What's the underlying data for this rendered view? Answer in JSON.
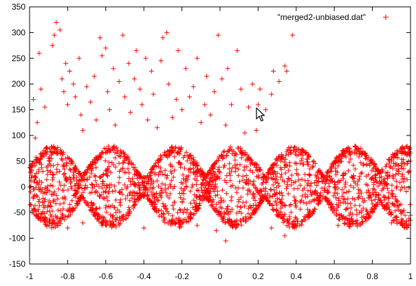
{
  "chart_data": {
    "type": "scatter",
    "title": "",
    "xlabel": "",
    "ylabel": "",
    "xlim": [
      -1,
      1
    ],
    "ylim": [
      -150,
      350
    ],
    "grid": false,
    "legend_position": "top-right",
    "marker": "plus",
    "colors": {
      "series": "#ff0000",
      "axes": "#000000",
      "background": "#ffffff"
    },
    "x_ticks": [
      {
        "value": -1,
        "label": "-1"
      },
      {
        "value": -0.8,
        "label": "-0.8"
      },
      {
        "value": -0.6,
        "label": "-0.6"
      },
      {
        "value": -0.4,
        "label": "-0.4"
      },
      {
        "value": -0.2,
        "label": "-0.2"
      },
      {
        "value": 0,
        "label": "0"
      },
      {
        "value": 0.2,
        "label": "0.2"
      },
      {
        "value": 0.4,
        "label": "0.4"
      },
      {
        "value": 0.6,
        "label": "0.6"
      },
      {
        "value": 0.8,
        "label": "0.8"
      },
      {
        "value": 1,
        "label": "1"
      }
    ],
    "y_ticks": [
      {
        "value": -150,
        "label": "-150"
      },
      {
        "value": -100,
        "label": "-100"
      },
      {
        "value": -50,
        "label": "-50"
      },
      {
        "value": 0,
        "label": "0"
      },
      {
        "value": 50,
        "label": "50"
      },
      {
        "value": 100,
        "label": "100"
      },
      {
        "value": 150,
        "label": "150"
      },
      {
        "value": 200,
        "label": "200"
      },
      {
        "value": 250,
        "label": "250"
      },
      {
        "value": 300,
        "label": "300"
      },
      {
        "value": 350,
        "label": "350"
      }
    ],
    "series": [
      {
        "name": "\"merged2-unbiased.dat\"",
        "band_summary": {
          "description": "dense band of points oscillating around 0",
          "lobe_centers_x": [
            -0.88,
            -0.57,
            -0.23,
            0.08,
            0.39,
            0.7,
            0.98
          ],
          "lobe_half_amplitude": 80,
          "trough_half_amplitude": 20
        },
        "outliers": [
          [
            -0.98,
            170
          ],
          [
            -0.97,
            95
          ],
          [
            -0.96,
            125
          ],
          [
            -0.95,
            260
          ],
          [
            -0.94,
            190
          ],
          [
            -0.92,
            155
          ],
          [
            -0.88,
            275
          ],
          [
            -0.87,
            295
          ],
          [
            -0.86,
            320
          ],
          [
            -0.84,
            305
          ],
          [
            -0.83,
            210
          ],
          [
            -0.82,
            185
          ],
          [
            -0.81,
            240
          ],
          [
            -0.8,
            160
          ],
          [
            -0.79,
            225
          ],
          [
            -0.77,
            200
          ],
          [
            -0.76,
            175
          ],
          [
            -0.74,
            250
          ],
          [
            -0.73,
            140
          ],
          [
            -0.72,
            110
          ],
          [
            -0.7,
            195
          ],
          [
            -0.68,
            165
          ],
          [
            -0.66,
            215
          ],
          [
            -0.65,
            130
          ],
          [
            -0.63,
            290
          ],
          [
            -0.62,
            255
          ],
          [
            -0.6,
            270
          ],
          [
            -0.59,
            185
          ],
          [
            -0.58,
            150
          ],
          [
            -0.56,
            230
          ],
          [
            -0.55,
            120
          ],
          [
            -0.53,
            205
          ],
          [
            -0.51,
            295
          ],
          [
            -0.5,
            175
          ],
          [
            -0.48,
            240
          ],
          [
            -0.47,
            145
          ],
          [
            -0.45,
            210
          ],
          [
            -0.44,
            265
          ],
          [
            -0.42,
            190
          ],
          [
            -0.41,
            160
          ],
          [
            -0.39,
            250
          ],
          [
            -0.38,
            130
          ],
          [
            -0.36,
            225
          ],
          [
            -0.35,
            180
          ],
          [
            -0.33,
            115
          ],
          [
            -0.31,
            245
          ],
          [
            -0.3,
            290
          ],
          [
            -0.28,
            300
          ],
          [
            -0.27,
            200
          ],
          [
            -0.25,
            135
          ],
          [
            -0.23,
            170
          ],
          [
            -0.22,
            265
          ],
          [
            -0.2,
            150
          ],
          [
            -0.18,
            230
          ],
          [
            -0.16,
            175
          ],
          [
            -0.14,
            195
          ],
          [
            -0.12,
            250
          ],
          [
            -0.1,
            125
          ],
          [
            -0.08,
            160
          ],
          [
            -0.07,
            215
          ],
          [
            -0.05,
            140
          ],
          [
            -0.03,
            185
          ],
          [
            -0.01,
            295
          ],
          [
            0.01,
            210
          ],
          [
            0.03,
            120
          ],
          [
            0.04,
            230
          ],
          [
            0.06,
            160
          ],
          [
            0.09,
            265
          ],
          [
            0.11,
            190
          ],
          [
            0.13,
            105
          ],
          [
            0.15,
            155
          ],
          [
            0.17,
            200
          ],
          [
            0.19,
            110
          ],
          [
            0.2,
            160
          ],
          [
            0.21,
            190
          ],
          [
            0.24,
            150
          ],
          [
            0.27,
            180
          ],
          [
            0.28,
            225
          ],
          [
            0.31,
            205
          ],
          [
            0.34,
            235
          ],
          [
            0.35,
            225
          ],
          [
            0.38,
            295
          ]
        ],
        "low_outliers": [
          [
            -0.8,
            -80
          ],
          [
            -0.72,
            -70
          ],
          [
            -0.62,
            -75
          ],
          [
            -0.4,
            -80
          ],
          [
            -0.12,
            -75
          ],
          [
            -0.02,
            -85
          ],
          [
            0.03,
            -105
          ],
          [
            0.27,
            -80
          ],
          [
            0.34,
            -95
          ],
          [
            0.62,
            -75
          ],
          [
            0.9,
            -70
          ]
        ]
      }
    ]
  },
  "icons": {
    "pointer": "mouse-pointer-icon"
  }
}
